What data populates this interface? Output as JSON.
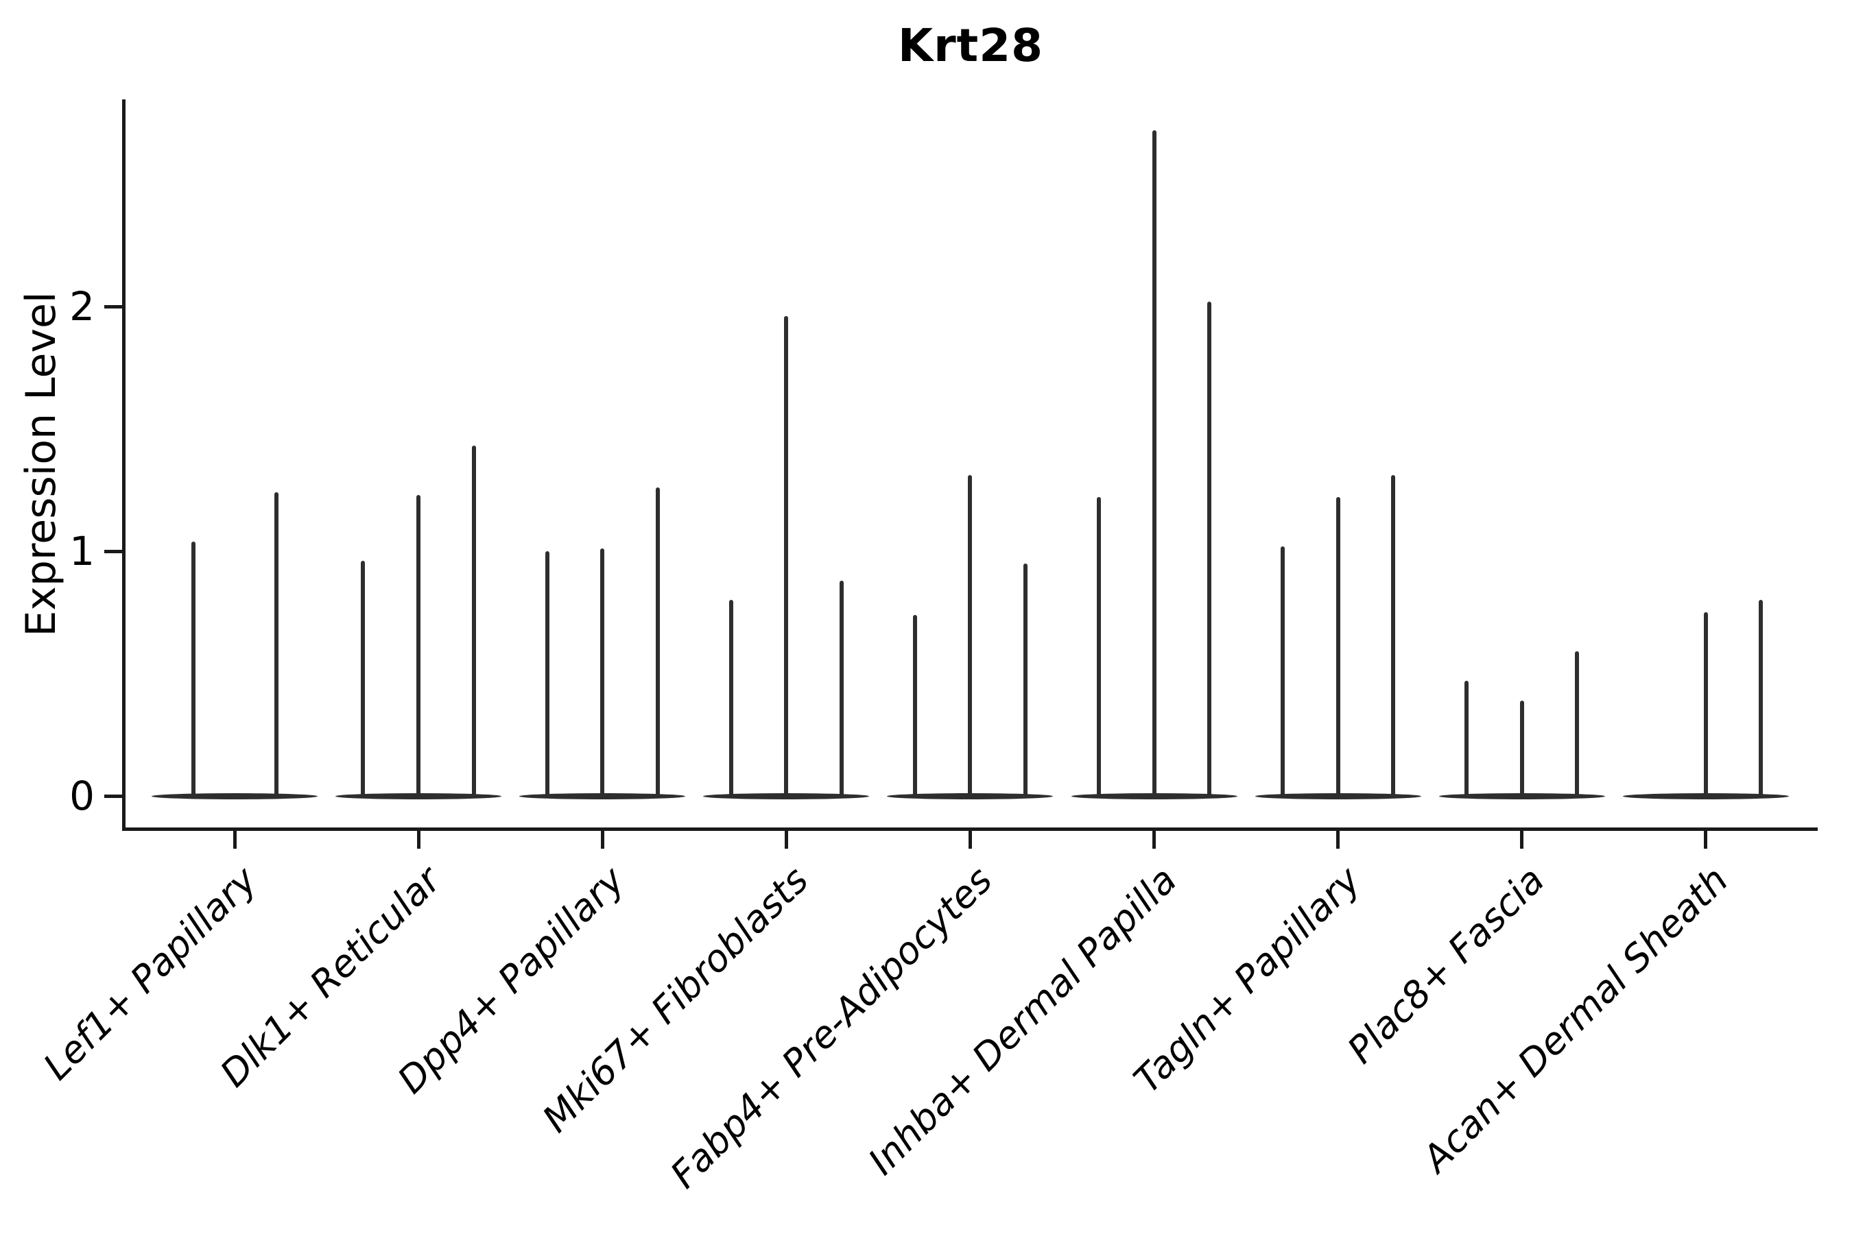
{
  "title": "Krt28",
  "axes": {
    "ylabel": "Expression Level",
    "ytick_labels": [
      "0",
      "1",
      "2"
    ]
  },
  "chart_data": {
    "type": "violin",
    "title": "Krt28",
    "xlabel": "",
    "ylabel": "Expression Level",
    "yticks": [
      0,
      1,
      2
    ],
    "ylim": [
      -0.13,
      2.85
    ],
    "grid": false,
    "legend": "none",
    "style_note": "violins collapsed to flat bodies at 0 with thin vertical max-expression spikes",
    "categories": [
      "Lef1+ Papillary",
      "Dlk1+ Reticular",
      "Dpp4+ Papillary",
      "Mki67+ Fibroblasts",
      "Fabp4+ Pre-Adipocytes",
      "Inhba+ Dermal Papilla",
      "Tagln+ Papillary",
      "Plac8+ Fascia",
      "Acan+ Dermal Sheath"
    ],
    "series": [
      {
        "category": "Lef1+ Papillary",
        "violin_maxima": [
          1.04,
          1.24
        ]
      },
      {
        "category": "Dlk1+ Reticular",
        "violin_maxima": [
          0.96,
          1.23,
          1.43
        ]
      },
      {
        "category": "Dpp4+ Papillary",
        "violin_maxima": [
          1.0,
          1.01,
          1.26
        ]
      },
      {
        "category": "Mki67+ Fibroblasts",
        "violin_maxima": [
          0.8,
          1.96,
          0.88
        ]
      },
      {
        "category": "Fabp4+ Pre-Adipocytes",
        "violin_maxima": [
          0.74,
          1.31,
          0.95
        ]
      },
      {
        "category": "Inhba+ Dermal Papilla",
        "violin_maxima": [
          1.22,
          2.72,
          2.02
        ]
      },
      {
        "category": "Tagln+ Papillary",
        "violin_maxima": [
          1.02,
          1.22,
          1.31
        ]
      },
      {
        "category": "Plac8+ Fascia",
        "violin_maxima": [
          0.47,
          0.39,
          0.59
        ]
      },
      {
        "category": "Acan+ Dermal Sheath",
        "violin_maxima": [
          0.0,
          0.75,
          0.8
        ]
      }
    ],
    "colors": {
      "violin_line": "#2e2e2e",
      "spine": "#1a1a1a",
      "text": "#000000",
      "background": "#ffffff"
    }
  }
}
